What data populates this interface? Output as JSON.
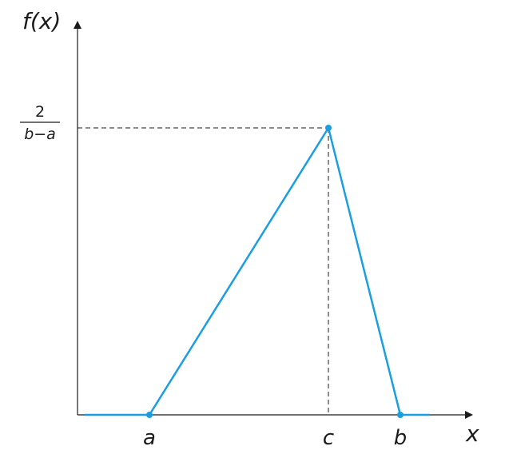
{
  "diagram": {
    "y_axis_label": "f(x)",
    "x_axis_label": "x",
    "peak_label_numerator": "2",
    "peak_label_denominator": "b−a",
    "x_tick_labels": [
      "a",
      "c",
      "b"
    ],
    "colors": {
      "curve": "#1b9ee0",
      "axes": "#1a1a1a",
      "guide": "#1a1a1a"
    }
  }
}
